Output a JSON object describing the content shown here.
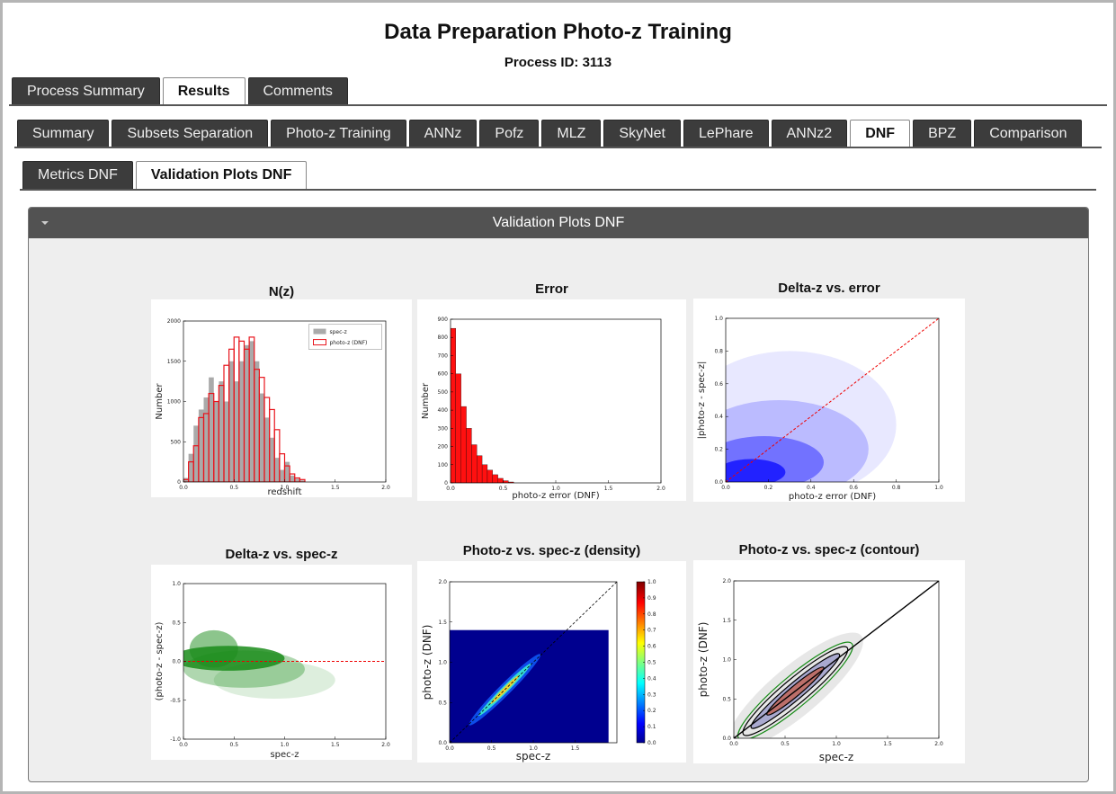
{
  "header": {
    "title": "Data Preparation Photo-z Training",
    "process_id": "Process ID: 3113"
  },
  "tabs": {
    "main": [
      "Process Summary",
      "Results",
      "Comments"
    ],
    "main_active": 1,
    "algorithms": [
      "Summary",
      "Subsets Separation",
      "Photo-z Training",
      "ANNz",
      "Pofz",
      "MLZ",
      "SkyNet",
      "LePhare",
      "ANNz2",
      "DNF",
      "BPZ",
      "Comparison"
    ],
    "algorithms_active": 9,
    "sub": [
      "Metrics DNF",
      "Validation Plots DNF"
    ],
    "sub_active": 1
  },
  "panel": {
    "title": "Validation Plots DNF"
  },
  "plots": [
    {
      "type": "histogram",
      "title": "N(z)",
      "xlabel": "redshift",
      "ylabel": "Number",
      "xlim": [
        0,
        2
      ],
      "ylim": [
        0,
        2000
      ],
      "xticks": [
        {
          "value": 0,
          "label": "0.0"
        },
        {
          "value": 0.5,
          "label": "0.5"
        },
        {
          "value": 1,
          "label": "1.0"
        },
        {
          "value": 1.5,
          "label": "1.5"
        },
        {
          "value": 2,
          "label": "2.0"
        }
      ],
      "yticks": [
        0,
        500,
        1000,
        1500,
        2000
      ],
      "bins": [
        0,
        0.05,
        0.1,
        0.15,
        0.2,
        0.25,
        0.3,
        0.35,
        0.4,
        0.45,
        0.5,
        0.55,
        0.6,
        0.65,
        0.7,
        0.75,
        0.8,
        0.85,
        0.9,
        0.95,
        1,
        1.05,
        1.1,
        1.15,
        1.2
      ],
      "legend": "upper right",
      "series": [
        {
          "name": "spec-z",
          "style": "fill",
          "color": "#aaaaaa",
          "values": [
            50,
            350,
            700,
            900,
            1050,
            1300,
            1000,
            1250,
            1000,
            1500,
            1250,
            1500,
            1700,
            1750,
            1500,
            1100,
            800,
            550,
            300,
            150,
            250,
            80,
            40,
            20
          ]
        },
        {
          "name": "photo-z (DNF)",
          "style": "step",
          "color": "#e8141c",
          "values": [
            30,
            250,
            450,
            800,
            850,
            1100,
            1000,
            1200,
            1450,
            1650,
            1800,
            1750,
            1650,
            1800,
            1400,
            1300,
            1050,
            900,
            650,
            350,
            200,
            100,
            50,
            30
          ]
        }
      ]
    },
    {
      "type": "histogram",
      "title": "Error",
      "xlabel": "photo-z error (DNF)",
      "ylabel": "Number",
      "xlim": [
        0,
        2
      ],
      "ylim": [
        0,
        900
      ],
      "xticks": [
        {
          "value": 0,
          "label": "0.0"
        },
        {
          "value": 0.5,
          "label": "0.5"
        },
        {
          "value": 1,
          "label": "1.0"
        },
        {
          "value": 1.5,
          "label": "1.5"
        },
        {
          "value": 2,
          "label": "2.0"
        }
      ],
      "yticks": [
        0,
        100,
        200,
        300,
        400,
        500,
        600,
        700,
        800,
        900
      ],
      "bins": [
        0,
        0.05,
        0.1,
        0.15,
        0.2,
        0.25,
        0.3,
        0.35,
        0.4,
        0.45,
        0.5,
        0.55,
        0.6
      ],
      "series": [
        {
          "style": "fill",
          "color": "#ff1010",
          "values": [
            850,
            600,
            420,
            300,
            210,
            150,
            100,
            70,
            45,
            25,
            12,
            5
          ]
        }
      ]
    },
    {
      "type": "scatter",
      "title": "Delta-z vs. error",
      "xlabel": "photo-z error (DNF)",
      "ylabel": "|photo-z - spec-z|",
      "color": "#1a1aff",
      "reference": "diagonal",
      "xlim": [
        0,
        1
      ],
      "ylim": [
        0,
        1
      ],
      "xticks": [
        {
          "value": 0,
          "label": "0.0"
        },
        {
          "value": 0.2,
          "label": "0.2"
        },
        {
          "value": 0.4,
          "label": "0.4"
        },
        {
          "value": 0.6,
          "label": "0.6"
        },
        {
          "value": 0.8,
          "label": "0.8"
        },
        {
          "value": 1,
          "label": "1.0"
        }
      ],
      "yticks": [
        {
          "value": 0,
          "label": "0.0"
        },
        {
          "value": 0.2,
          "label": "0.2"
        },
        {
          "value": 0.4,
          "label": "0.4"
        },
        {
          "value": 0.6,
          "label": "0.6"
        },
        {
          "value": 0.8,
          "label": "0.8"
        },
        {
          "value": 1,
          "label": "1.0"
        }
      ]
    },
    {
      "type": "scatter",
      "title": "Delta-z vs. spec-z",
      "xlabel": "spec-z",
      "ylabel": "(photo-z - spec-z)",
      "color": "#1a8c1a",
      "reference": "zero",
      "xlim": [
        0,
        2
      ],
      "ylim": [
        -1,
        1
      ],
      "xticks": [
        {
          "value": 0,
          "label": "0.0"
        },
        {
          "value": 0.5,
          "label": "0.5"
        },
        {
          "value": 1,
          "label": "1.0"
        },
        {
          "value": 1.5,
          "label": "1.5"
        },
        {
          "value": 2,
          "label": "2.0"
        }
      ],
      "yticks": [
        {
          "value": -1,
          "label": "-1.0"
        },
        {
          "value": -0.5,
          "label": "-0.5"
        },
        {
          "value": 0,
          "label": "0.0"
        },
        {
          "value": 0.5,
          "label": "0.5"
        },
        {
          "value": 1,
          "label": "1.0"
        }
      ]
    },
    {
      "type": "density",
      "title": "Photo-z vs. spec-z (density)",
      "xlabel": "spec-z",
      "ylabel": "photo-z (DNF)",
      "xlim": [
        0,
        2
      ],
      "ylim": [
        0,
        2
      ],
      "xticks": [
        {
          "value": 0,
          "label": "0.0"
        },
        {
          "value": 0.5,
          "label": "0.5"
        },
        {
          "value": 1,
          "label": "1.0"
        },
        {
          "value": 1.5,
          "label": "1.5"
        }
      ],
      "yticks": [
        {
          "value": 0,
          "label": "0.0"
        },
        {
          "value": 0.5,
          "label": "0.5"
        },
        {
          "value": 1,
          "label": "1.0"
        },
        {
          "value": 1.5,
          "label": "1.5"
        },
        {
          "value": 2,
          "label": "2.0"
        }
      ],
      "colorbar_lim": [
        0,
        1
      ],
      "colorbar_ticks": [
        {
          "value": 0,
          "label": "0.0"
        },
        {
          "value": 0.1,
          "label": "0.1"
        },
        {
          "value": 0.2,
          "label": "0.2"
        },
        {
          "value": 0.3,
          "label": "0.3"
        },
        {
          "value": 0.4,
          "label": "0.4"
        },
        {
          "value": 0.5,
          "label": "0.5"
        },
        {
          "value": 0.6,
          "label": "0.6"
        },
        {
          "value": 0.7,
          "label": "0.7"
        },
        {
          "value": 0.8,
          "label": "0.8"
        },
        {
          "value": 0.9,
          "label": "0.9"
        },
        {
          "value": 1,
          "label": "1.0"
        }
      ]
    },
    {
      "type": "contour",
      "title": "Photo-z vs. spec-z (contour)",
      "xlabel": "spec-z",
      "ylabel": "photo-z (DNF)",
      "xlim": [
        0,
        2
      ],
      "ylim": [
        0,
        2
      ],
      "xticks": [
        {
          "value": 0,
          "label": "0.0"
        },
        {
          "value": 0.5,
          "label": "0.5"
        },
        {
          "value": 1,
          "label": "1.0"
        },
        {
          "value": 1.5,
          "label": "1.5"
        },
        {
          "value": 2,
          "label": "2.0"
        }
      ],
      "yticks": [
        {
          "value": 0,
          "label": "0.0"
        },
        {
          "value": 0.5,
          "label": "0.5"
        },
        {
          "value": 1,
          "label": "1.0"
        },
        {
          "value": 1.5,
          "label": "1.5"
        },
        {
          "value": 2,
          "label": "2.0"
        }
      ]
    }
  ]
}
